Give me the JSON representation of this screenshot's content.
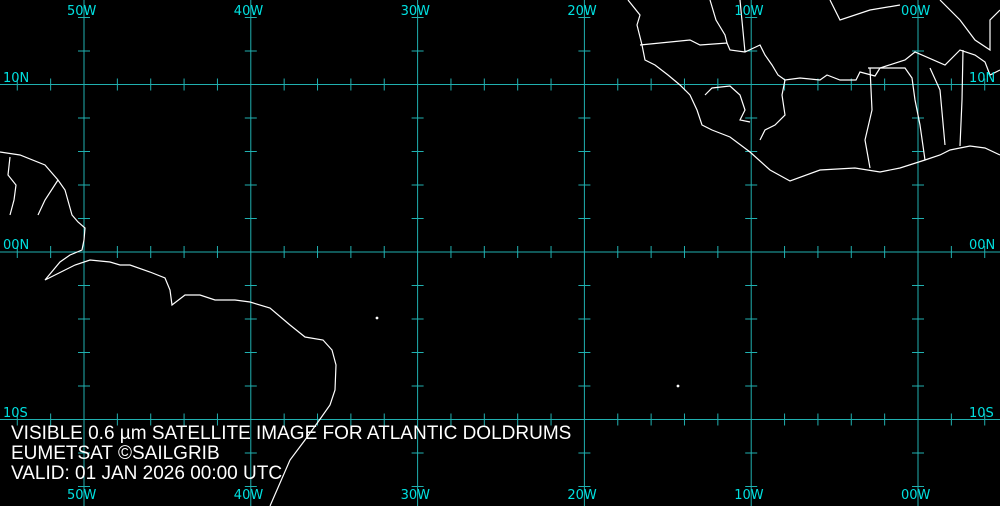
{
  "map": {
    "grid_color": "#20b0b0",
    "label_color": "#00e0e0",
    "coast_color": "#ffffff",
    "longitude_labels": [
      "50W",
      "40W",
      "30W",
      "20W",
      "10W",
      "00W"
    ],
    "longitudes": [
      -50,
      -40,
      -30,
      -20,
      -10,
      0
    ],
    "latitude_labels": [
      "10N",
      "00N",
      "10S"
    ],
    "latitudes": [
      10,
      0,
      -10
    ],
    "tick_interval_deg": 2
  },
  "caption": {
    "line1": "VISIBLE 0.6 µm SATELLITE IMAGE FOR ATLANTIC DOLDRUMS",
    "line2": "EUMETSAT ©SAILGRIB",
    "line3": "VALID:  01 JAN 2026 00:00 UTC"
  }
}
